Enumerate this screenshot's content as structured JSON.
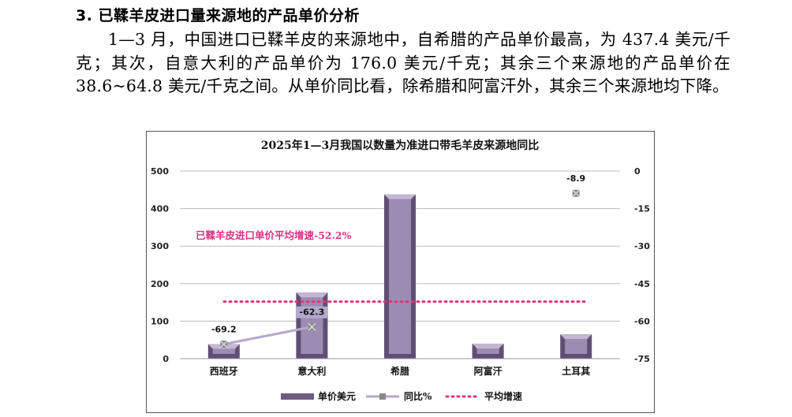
{
  "heading": "3. 已鞣羊皮进口量来源地的产品单价分析",
  "paragraph": "1—3 月，中国进口已鞣羊皮的来源地中，自希腊的产品单价最高，为 437.4 美元/千克；其次，自意大利的产品单价为 176.0 美元/千克；其余三个来源地的产品单价在 38.6~64.8 美元/千克之间。从单价同比看，除希腊和阿富汗外，其余三个来源地均下降。",
  "chart_data": {
    "type": "bar",
    "title": "2025年1—3月我国以数量为准进口带毛羊皮来源地同比",
    "categories": [
      "西班牙",
      "意大利",
      "希腊",
      "阿富汗",
      "土耳其"
    ],
    "series": [
      {
        "name": "单价美元",
        "type": "bar",
        "values": [
          38.6,
          176.0,
          437.4,
          40.0,
          64.8
        ],
        "color": "#8e7aa0"
      },
      {
        "name": "同比%",
        "type": "line",
        "axis": "right",
        "values": [
          -69.2,
          -62.3,
          null,
          null,
          -8.9
        ],
        "labels": [
          "-69.2",
          "-62.3",
          "",
          "",
          "-8.9"
        ],
        "color": "#b4a8cc"
      },
      {
        "name": "平均增速",
        "type": "line",
        "axis": "right",
        "values": [
          -52.2,
          -52.2,
          -52.2,
          -52.2,
          -52.2
        ],
        "color": "#e0357a"
      }
    ],
    "annotation": "已鞣羊皮进口单价平均增速-52.2%",
    "ylim_left": [
      0,
      500
    ],
    "yticks_left": [
      "500",
      "400",
      "300",
      "200",
      "100",
      "0"
    ],
    "ylim_right": [
      -75,
      0
    ],
    "yticks_right": [
      "0",
      "-15",
      "-30",
      "-45",
      "-60",
      "-75"
    ],
    "grid": true,
    "legend": "bottom"
  }
}
